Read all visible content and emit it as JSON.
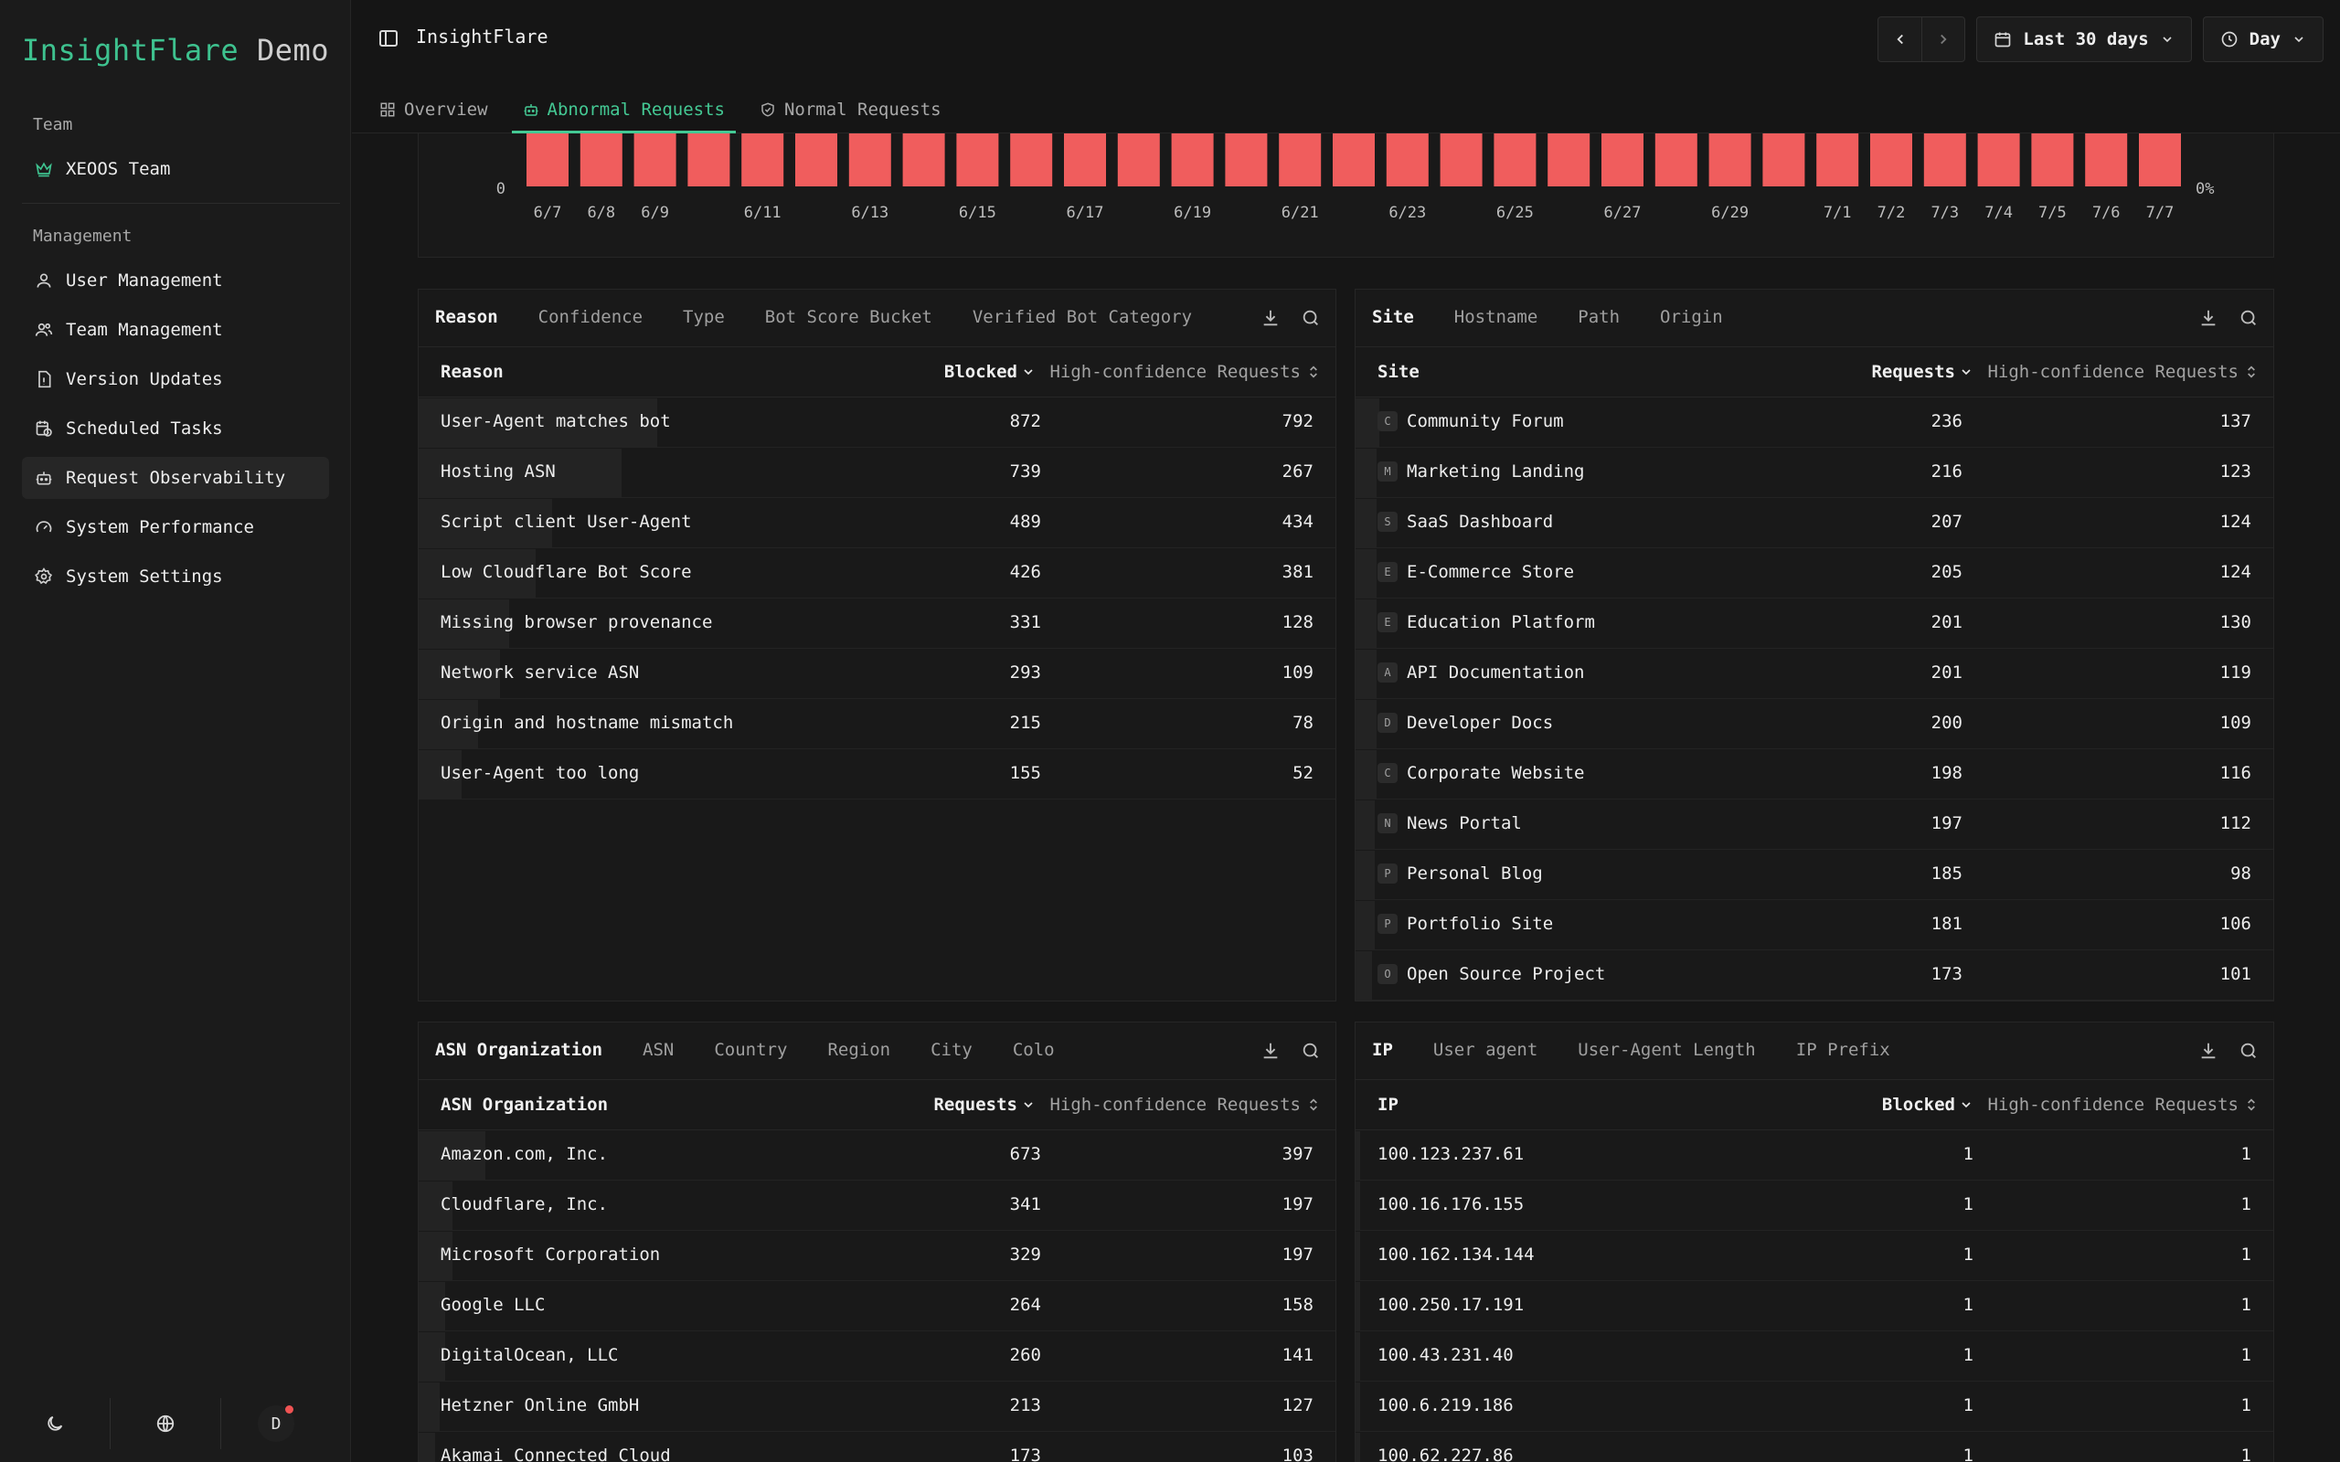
{
  "brand": {
    "name": "InsightFlare",
    "suffix": "Demo",
    "accent": "#3ec28f"
  },
  "sidebar": {
    "team_heading": "Team",
    "team_name": "XEOOS Team",
    "management_heading": "Management",
    "items": [
      {
        "label": "User Management",
        "icon": "user-icon"
      },
      {
        "label": "Team Management",
        "icon": "users-icon"
      },
      {
        "label": "Version Updates",
        "icon": "file-icon"
      },
      {
        "label": "Scheduled Tasks",
        "icon": "calendar-clock-icon"
      },
      {
        "label": "Request Observability",
        "icon": "bot-icon",
        "active": true
      },
      {
        "label": "System Performance",
        "icon": "gauge-icon"
      },
      {
        "label": "System Settings",
        "icon": "gear-icon"
      }
    ],
    "avatar_initial": "D"
  },
  "header": {
    "title": "InsightFlare",
    "range_label": "Last 30 days",
    "granularity_label": "Day",
    "tabs": [
      {
        "label": "Overview",
        "icon": "grid-icon"
      },
      {
        "label": "Abnormal Requests",
        "icon": "bot-icon",
        "active": true
      },
      {
        "label": "Normal Requests",
        "icon": "shield-check-icon"
      }
    ]
  },
  "chart_data": {
    "type": "bar",
    "y_left_tick": "0",
    "y_right_tick": "0%",
    "bar_color": "#f05d5d",
    "x_labels": [
      {
        "label": "6/7",
        "i": 0
      },
      {
        "label": "6/8",
        "i": 1
      },
      {
        "label": "6/9",
        "i": 2
      },
      {
        "label": "6/11",
        "i": 4
      },
      {
        "label": "6/13",
        "i": 6
      },
      {
        "label": "6/15",
        "i": 8
      },
      {
        "label": "6/17",
        "i": 10
      },
      {
        "label": "6/19",
        "i": 12
      },
      {
        "label": "6/21",
        "i": 14
      },
      {
        "label": "6/23",
        "i": 16
      },
      {
        "label": "6/25",
        "i": 18
      },
      {
        "label": "6/27",
        "i": 20
      },
      {
        "label": "6/29",
        "i": 22
      },
      {
        "label": "7/1",
        "i": 24
      },
      {
        "label": "7/2",
        "i": 25
      },
      {
        "label": "7/3",
        "i": 26
      },
      {
        "label": "7/4",
        "i": 27
      },
      {
        "label": "7/5",
        "i": 28
      },
      {
        "label": "7/6",
        "i": 29
      },
      {
        "label": "7/7",
        "i": 30
      }
    ],
    "bar_count": 31
  },
  "panels": {
    "reason": {
      "tabs": [
        "Reason",
        "Confidence",
        "Type",
        "Bot Score Bucket",
        "Verified Bot Category"
      ],
      "col1": "Reason",
      "col2": "Blocked",
      "col3": "High-confidence Requests",
      "rows": [
        {
          "label": "User-Agent matches bot",
          "v2": "872",
          "v3": "792",
          "share": 1.0
        },
        {
          "label": "Hosting ASN",
          "v2": "739",
          "v3": "267",
          "share": 0.85
        },
        {
          "label": "Script client User-Agent",
          "v2": "489",
          "v3": "434",
          "share": 0.56
        },
        {
          "label": "Low Cloudflare Bot Score",
          "v2": "426",
          "v3": "381",
          "share": 0.49
        },
        {
          "label": "Missing browser provenance",
          "v2": "331",
          "v3": "128",
          "share": 0.38
        },
        {
          "label": "Network service ASN",
          "v2": "293",
          "v3": "109",
          "share": 0.34
        },
        {
          "label": "Origin and hostname mismatch",
          "v2": "215",
          "v3": "78",
          "share": 0.25
        },
        {
          "label": "User-Agent too long",
          "v2": "155",
          "v3": "52",
          "share": 0.18
        }
      ]
    },
    "site": {
      "tabs": [
        "Site",
        "Hostname",
        "Path",
        "Origin"
      ],
      "col1": "Site",
      "col2": "Requests",
      "col3": "High-confidence Requests",
      "rows": [
        {
          "icon": "C",
          "label": "Community Forum",
          "v2": "236",
          "v3": "137",
          "share": 0.1
        },
        {
          "icon": "M",
          "label": "Marketing Landing",
          "v2": "216",
          "v3": "123",
          "share": 0.09
        },
        {
          "icon": "S",
          "label": "SaaS Dashboard",
          "v2": "207",
          "v3": "124",
          "share": 0.09
        },
        {
          "icon": "E",
          "label": "E-Commerce Store",
          "v2": "205",
          "v3": "124",
          "share": 0.09
        },
        {
          "icon": "E",
          "label": "Education Platform",
          "v2": "201",
          "v3": "130",
          "share": 0.09
        },
        {
          "icon": "A",
          "label": "API Documentation",
          "v2": "201",
          "v3": "119",
          "share": 0.09
        },
        {
          "icon": "D",
          "label": "Developer Docs",
          "v2": "200",
          "v3": "109",
          "share": 0.09
        },
        {
          "icon": "C",
          "label": "Corporate Website",
          "v2": "198",
          "v3": "116",
          "share": 0.09
        },
        {
          "icon": "N",
          "label": "News Portal",
          "v2": "197",
          "v3": "112",
          "share": 0.08
        },
        {
          "icon": "P",
          "label": "Personal Blog",
          "v2": "185",
          "v3": "98",
          "share": 0.08
        },
        {
          "icon": "P",
          "label": "Portfolio Site",
          "v2": "181",
          "v3": "106",
          "share": 0.08
        },
        {
          "icon": "O",
          "label": "Open Source Project",
          "v2": "173",
          "v3": "101",
          "share": 0.07
        }
      ]
    },
    "asn": {
      "tabs": [
        "ASN Organization",
        "ASN",
        "Country",
        "Region",
        "City",
        "Colo"
      ],
      "col1": "ASN Organization",
      "col2": "Requests",
      "col3": "High-confidence Requests",
      "rows": [
        {
          "label": "Amazon.com, Inc.",
          "v2": "673",
          "v3": "397",
          "share": 0.28
        },
        {
          "label": "Cloudflare, Inc.",
          "v2": "341",
          "v3": "197",
          "share": 0.14
        },
        {
          "label": "Microsoft Corporation",
          "v2": "329",
          "v3": "197",
          "share": 0.14
        },
        {
          "label": "Google LLC",
          "v2": "264",
          "v3": "158",
          "share": 0.11
        },
        {
          "label": "DigitalOcean, LLC",
          "v2": "260",
          "v3": "141",
          "share": 0.11
        },
        {
          "label": "Hetzner Online GmbH",
          "v2": "213",
          "v3": "127",
          "share": 0.09
        },
        {
          "label": "Akamai Connected Cloud",
          "v2": "173",
          "v3": "103",
          "share": 0.07
        }
      ]
    },
    "ip": {
      "tabs": [
        "IP",
        "User agent",
        "User-Agent Length",
        "IP Prefix"
      ],
      "col1": "IP",
      "col2": "Blocked",
      "col3": "High-confidence Requests",
      "rows": [
        {
          "label": "100.123.237.61",
          "v2": "1",
          "v3": "1",
          "share": 0.02
        },
        {
          "label": "100.16.176.155",
          "v2": "1",
          "v3": "1",
          "share": 0.02
        },
        {
          "label": "100.162.134.144",
          "v2": "1",
          "v3": "1",
          "share": 0.02
        },
        {
          "label": "100.250.17.191",
          "v2": "1",
          "v3": "1",
          "share": 0.02
        },
        {
          "label": "100.43.231.40",
          "v2": "1",
          "v3": "1",
          "share": 0.02
        },
        {
          "label": "100.6.219.186",
          "v2": "1",
          "v3": "1",
          "share": 0.02
        },
        {
          "label": "100.62.227.86",
          "v2": "1",
          "v3": "1",
          "share": 0.02
        }
      ]
    }
  }
}
